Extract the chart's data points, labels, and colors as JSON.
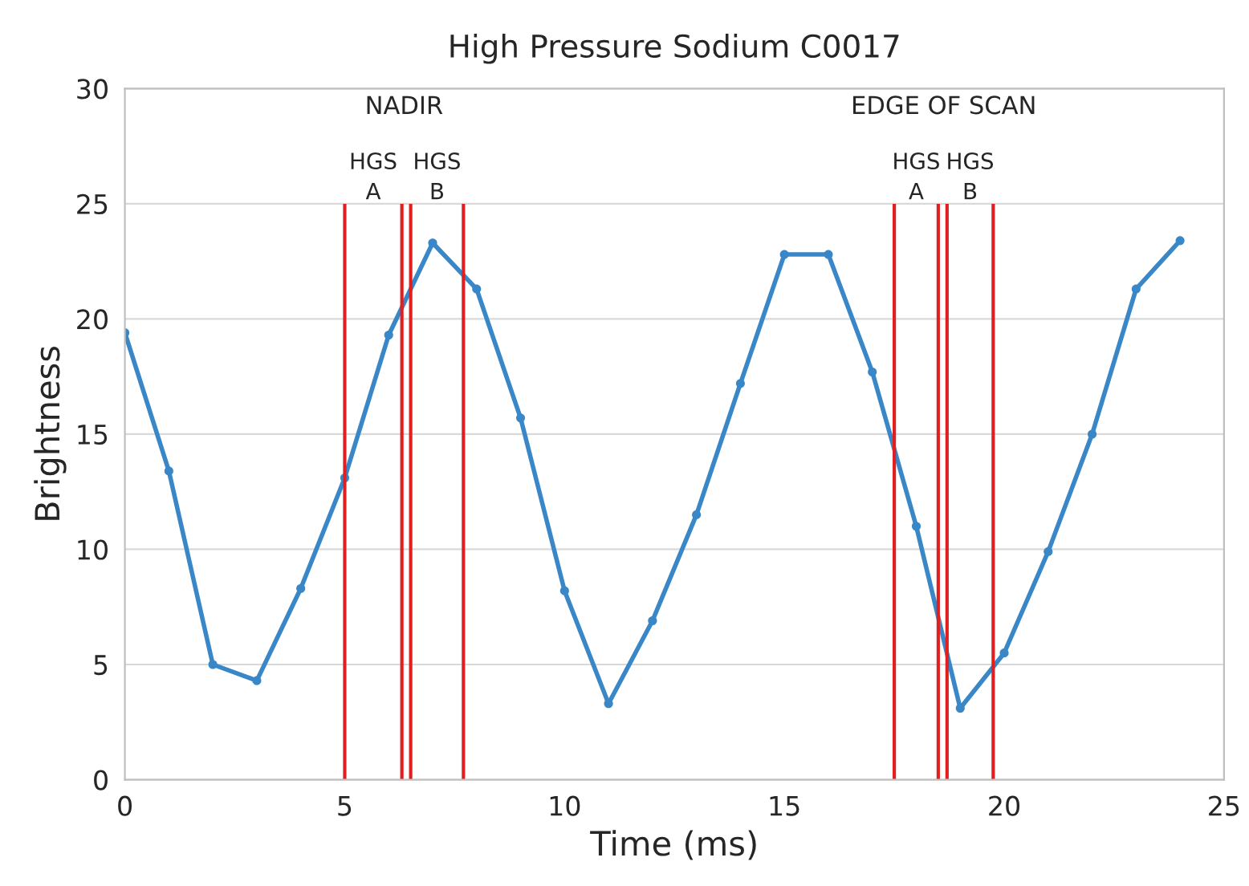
{
  "chart_data": {
    "type": "line",
    "title": "High Pressure Sodium C0017",
    "xlabel": "Time (ms)",
    "ylabel": "Brightness",
    "x": [
      0,
      1,
      2,
      3,
      4,
      5,
      6,
      7,
      8,
      9,
      10,
      11,
      12,
      13,
      14,
      15,
      16,
      17,
      18,
      19,
      20,
      21,
      22,
      23,
      24
    ],
    "series": [
      {
        "color": "#3a87c8",
        "values": [
          19.4,
          13.4,
          5.0,
          4.3,
          8.3,
          13.1,
          19.3,
          23.3,
          21.3,
          15.7,
          8.2,
          3.3,
          6.9,
          11.5,
          17.2,
          22.8,
          22.8,
          17.7,
          11.0,
          3.1,
          5.5,
          9.9,
          15.0,
          21.3,
          23.4
        ]
      }
    ],
    "marker": "circle",
    "line_style": "solid",
    "grid": "y",
    "xlim": [
      0,
      25
    ],
    "xticks": [
      0,
      5,
      10,
      15,
      20,
      25
    ],
    "ylim": [
      0,
      30
    ],
    "yticks": [
      0,
      5,
      10,
      15,
      20,
      25,
      30
    ],
    "ref_lines": [
      {
        "axis": "x",
        "value": 5.0,
        "color": "#e02020",
        "label": "HGS\nA"
      },
      {
        "axis": "x",
        "value": 6.3,
        "color": "#e02020"
      },
      {
        "axis": "x",
        "value": 6.5,
        "color": "#e02020",
        "label": "HGS\nB"
      },
      {
        "axis": "x",
        "value": 7.7,
        "color": "#e02020"
      },
      {
        "axis": "x",
        "value": 17.5,
        "color": "#e02020",
        "label": "HGS\nA"
      },
      {
        "axis": "x",
        "value": 18.5,
        "color": "#e02020"
      },
      {
        "axis": "x",
        "value": 18.7,
        "color": "#e02020",
        "label": "HGS\nB"
      },
      {
        "axis": "x",
        "value": 19.75,
        "color": "#e02020"
      }
    ],
    "annotations": [
      "NADIR",
      "EDGE OF SCAN"
    ]
  }
}
